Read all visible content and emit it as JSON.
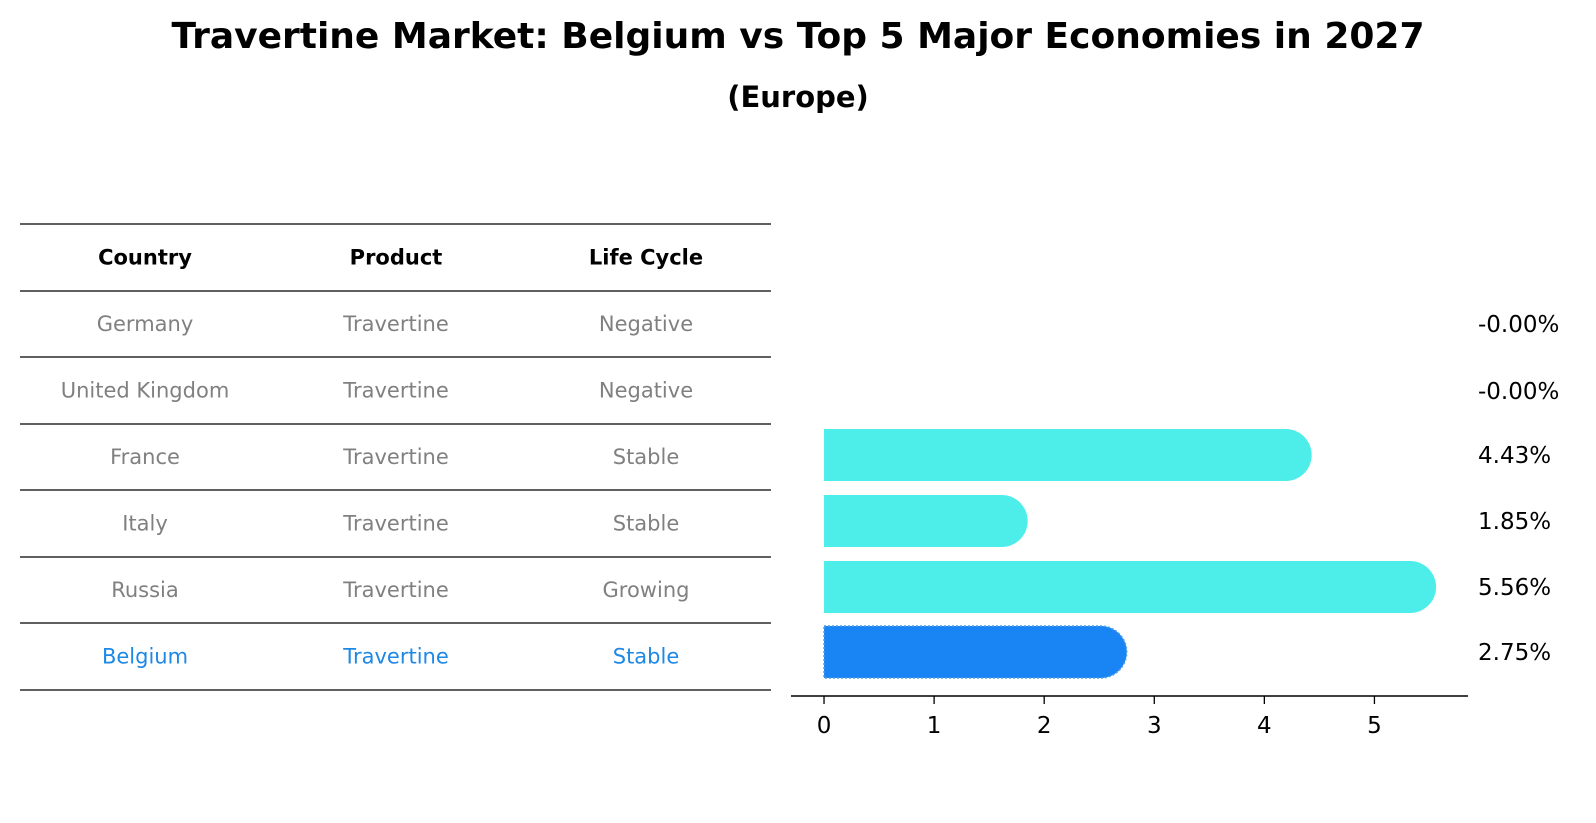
{
  "title": "Travertine Market: Belgium vs Top 5 Major Economies in 2027",
  "subtitle": "(Europe)",
  "colors": {
    "highlight": "#1e88e5",
    "highlight_bar": "#1984f4",
    "bar": "#4deeea",
    "muted_text": "#808080",
    "header_text": "#000000",
    "rule": "#000000"
  },
  "table": {
    "headers": [
      "Country",
      "Product",
      "Life Cycle"
    ],
    "rows": [
      {
        "country": "Germany",
        "product": "Travertine",
        "life_cycle": "Negative",
        "highlight": false
      },
      {
        "country": "United Kingdom",
        "product": "Travertine",
        "life_cycle": "Negative",
        "highlight": false
      },
      {
        "country": "France",
        "product": "Travertine",
        "life_cycle": "Stable",
        "highlight": false
      },
      {
        "country": "Italy",
        "product": "Travertine",
        "life_cycle": "Stable",
        "highlight": false
      },
      {
        "country": "Russia",
        "product": "Travertine",
        "life_cycle": "Growing",
        "highlight": false
      },
      {
        "country": "Belgium",
        "product": "Travertine",
        "life_cycle": "Stable",
        "highlight": true
      }
    ]
  },
  "chart_data": {
    "type": "bar",
    "orientation": "horizontal",
    "categories": [
      "Germany",
      "United Kingdom",
      "France",
      "Italy",
      "Russia",
      "Belgium"
    ],
    "values": [
      -0.0,
      -0.0,
      4.43,
      1.85,
      5.56,
      2.75
    ],
    "value_labels": [
      "-0.00%",
      "-0.00%",
      "4.43%",
      "1.85%",
      "5.56%",
      "2.75%"
    ],
    "highlight_category": "Belgium",
    "xlim": [
      -0.3,
      5.85
    ],
    "xticks": [
      0,
      1,
      2,
      3,
      4,
      5
    ],
    "xlabel": "",
    "ylabel": "",
    "grid": false,
    "legend": "none"
  }
}
